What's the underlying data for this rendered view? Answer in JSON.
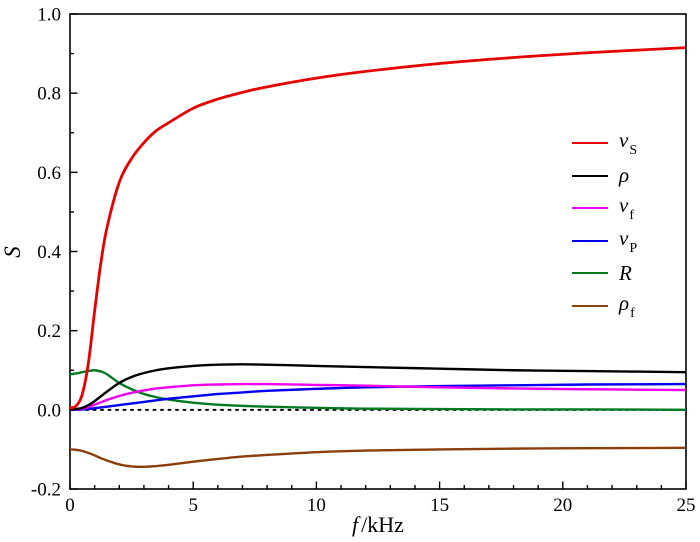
{
  "labels": {
    "x_var": "f",
    "x_unit": "/kHz",
    "y": "S"
  },
  "chart_data": {
    "type": "line",
    "title": "",
    "xlabel": "f /kHz",
    "ylabel": "S",
    "xlim": [
      0,
      25
    ],
    "ylim": [
      -0.2,
      1.0
    ],
    "grid": false,
    "legend_position": "center-right",
    "frame_color": "#000000",
    "zero_line": {
      "y": 0,
      "style": "dotted",
      "color": "#000000"
    },
    "x_ticks": [
      0,
      5,
      10,
      15,
      20,
      25
    ],
    "x_tick_labels": [
      "0",
      "5",
      "10",
      "15",
      "20",
      "25"
    ],
    "x_minor_step": 1,
    "y_ticks": [
      -0.2,
      0.0,
      0.2,
      0.4,
      0.6,
      0.8,
      1.0
    ],
    "y_tick_labels": [
      "-0.2",
      "0.0",
      "0.2",
      "0.4",
      "0.6",
      "0.8",
      "1.0"
    ],
    "y_minor_step": 0.1,
    "x": [
      0,
      0.25,
      0.5,
      0.75,
      1,
      1.25,
      1.5,
      2,
      2.5,
      3,
      3.5,
      4,
      5,
      6,
      7,
      8,
      10,
      12,
      15,
      18,
      21,
      25
    ],
    "series": [
      {
        "name": "v_S",
        "label_main": "v",
        "label_sub": "S",
        "color": "#e60000",
        "line_width": 2.8,
        "values": [
          0.005,
          0.01,
          0.04,
          0.12,
          0.25,
          0.37,
          0.46,
          0.575,
          0.635,
          0.675,
          0.705,
          0.725,
          0.762,
          0.785,
          0.802,
          0.816,
          0.838,
          0.855,
          0.875,
          0.89,
          0.902,
          0.915
        ]
      },
      {
        "name": "rho",
        "label_main": "ρ",
        "label_sub": "",
        "color": "#000000",
        "line_width": 2.4,
        "values": [
          0.0,
          0.002,
          0.005,
          0.012,
          0.022,
          0.034,
          0.046,
          0.068,
          0.083,
          0.093,
          0.1,
          0.105,
          0.111,
          0.114,
          0.115,
          0.114,
          0.111,
          0.108,
          0.104,
          0.1,
          0.098,
          0.095
        ]
      },
      {
        "name": "v_f",
        "label_main": "v",
        "label_sub": "f",
        "color": "#ee00ee",
        "line_width": 2.4,
        "values": [
          0.0,
          0.001,
          0.003,
          0.007,
          0.013,
          0.019,
          0.025,
          0.035,
          0.043,
          0.049,
          0.054,
          0.057,
          0.062,
          0.064,
          0.065,
          0.065,
          0.063,
          0.061,
          0.057,
          0.054,
          0.052,
          0.05
        ]
      },
      {
        "name": "v_P",
        "label_main": "v",
        "label_sub": "P",
        "color": "#0000ee",
        "line_width": 2.4,
        "values": [
          0.0,
          0.0,
          0.001,
          0.002,
          0.004,
          0.006,
          0.008,
          0.012,
          0.016,
          0.02,
          0.024,
          0.028,
          0.034,
          0.04,
          0.044,
          0.048,
          0.053,
          0.057,
          0.06,
          0.062,
          0.064,
          0.065
        ]
      },
      {
        "name": "R",
        "label_main": "R",
        "label_sub": "",
        "color": "#007a21",
        "line_width": 2.4,
        "values": [
          0.09,
          0.092,
          0.095,
          0.098,
          0.1,
          0.097,
          0.09,
          0.068,
          0.052,
          0.04,
          0.032,
          0.026,
          0.018,
          0.013,
          0.01,
          0.008,
          0.005,
          0.003,
          0.002,
          0.001,
          0.001,
          0.0
        ]
      },
      {
        "name": "rho_f",
        "label_main": "ρ",
        "label_sub": "f",
        "color": "#8b3e0a",
        "line_width": 2.4,
        "values": [
          -0.1,
          -0.101,
          -0.104,
          -0.109,
          -0.115,
          -0.122,
          -0.128,
          -0.138,
          -0.143,
          -0.144,
          -0.142,
          -0.139,
          -0.131,
          -0.124,
          -0.118,
          -0.114,
          -0.107,
          -0.103,
          -0.1,
          -0.098,
          -0.097,
          -0.096
        ]
      }
    ]
  }
}
